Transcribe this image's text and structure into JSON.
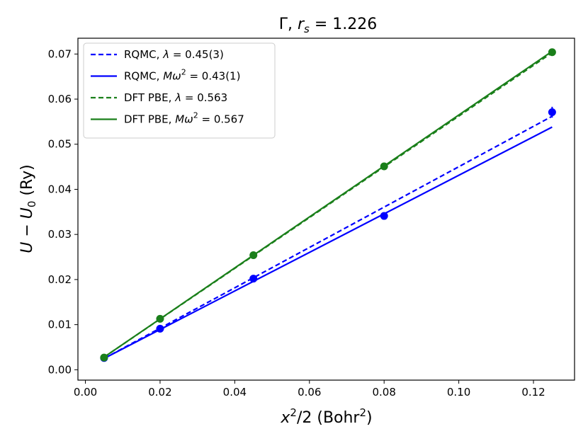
{
  "chart_data": {
    "type": "line",
    "title_main": "Γ, ",
    "title_sym": "r",
    "title_sub": "s",
    "title_eq": " = 1.226",
    "xlabel_main": "x",
    "xlabel_sup": "2",
    "xlabel_rest": "/2 (Bohr",
    "xlabel_sup2": "2",
    "xlabel_end": ")",
    "ylabel_u": "U",
    "ylabel_minus": " − ",
    "ylabel_u0": "U",
    "ylabel_sub": "0",
    "ylabel_unit": " (Ry)",
    "xlim": [
      -0.002,
      0.131
    ],
    "ylim": [
      -0.0023,
      0.0735
    ],
    "x_ticks": [
      0.0,
      0.02,
      0.04,
      0.06,
      0.08,
      0.1,
      0.12
    ],
    "x_tick_labels": [
      "0.00",
      "0.02",
      "0.04",
      "0.06",
      "0.08",
      "0.10",
      "0.12"
    ],
    "y_ticks": [
      0.0,
      0.01,
      0.02,
      0.03,
      0.04,
      0.05,
      0.06,
      0.07
    ],
    "y_tick_labels": [
      "0.00",
      "0.01",
      "0.02",
      "0.03",
      "0.04",
      "0.05",
      "0.06",
      "0.07"
    ],
    "grid": false,
    "legend_position": "top-left",
    "colors": {
      "rqmc": "#0000ff",
      "dft": "#1a7f1a"
    },
    "fit_lines": [
      {
        "name": "RQMC, λ = 0.45(3)",
        "label_pre": "RQMC, ",
        "label_sym": "λ",
        "label_post": " = 0.45(3)",
        "color": "#0000ff",
        "style": "dashed",
        "x": [
          0.005,
          0.125
        ],
        "y": [
          0.0025,
          0.0562
        ]
      },
      {
        "name": "RQMC, Mω² = 0.43(1)",
        "label_pre": "RQMC, ",
        "label_sym": "Mω",
        "label_sup": "2",
        "label_post": " = 0.43(1)",
        "color": "#0000ff",
        "style": "solid",
        "x": [
          0.005,
          0.125
        ],
        "y": [
          0.0025,
          0.0538
        ]
      },
      {
        "name": "DFT PBE, λ = 0.563",
        "label_pre": "DFT PBE, ",
        "label_sym": "λ",
        "label_post": " = 0.563",
        "color": "#1a7f1a",
        "style": "dashed",
        "x": [
          0.005,
          0.125
        ],
        "y": [
          0.0028,
          0.0703
        ]
      },
      {
        "name": "DFT PBE, Mω² = 0.567",
        "label_pre": "DFT PBE, ",
        "label_sym": "Mω",
        "label_sup": "2",
        "label_post": " = 0.567",
        "color": "#1a7f1a",
        "style": "solid",
        "x": [
          0.005,
          0.125
        ],
        "y": [
          0.0028,
          0.0706
        ]
      }
    ],
    "points": [
      {
        "series": "RQMC",
        "color": "#0000ff",
        "x": [
          0.005,
          0.02,
          0.045,
          0.08,
          0.125
        ],
        "y": [
          0.0026,
          0.0091,
          0.0202,
          0.0341,
          0.0571
        ],
        "yerr": [
          0.0002,
          0.0003,
          0.0003,
          0.0004,
          0.0012
        ]
      },
      {
        "series": "DFT PBE",
        "color": "#1a7f1a",
        "x": [
          0.005,
          0.02,
          0.045,
          0.08,
          0.125
        ],
        "y": [
          0.0027,
          0.0113,
          0.0254,
          0.0451,
          0.0704
        ],
        "yerr": [
          0,
          0,
          0,
          0,
          0
        ]
      }
    ]
  }
}
